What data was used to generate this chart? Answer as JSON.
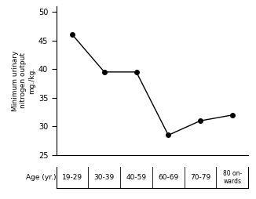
{
  "categories": [
    "19-29",
    "30-39",
    "40-59",
    "60-69",
    "70-79",
    "80 on-\nwards"
  ],
  "x_positions": [
    0,
    1,
    2,
    3,
    4,
    5
  ],
  "values": [
    46.0,
    39.5,
    39.5,
    28.5,
    31.0,
    32.0
  ],
  "ylabel": "Minimum urinary\nnitrogen output\nmg./kg.",
  "xlabel": "Age (yr.)",
  "ylim": [
    25,
    51
  ],
  "yticks": [
    25,
    30,
    35,
    40,
    45,
    50
  ],
  "line_color": "#000000",
  "marker": "o",
  "markersize": 4,
  "bg_color": "#ffffff",
  "linewidth": 1.0
}
